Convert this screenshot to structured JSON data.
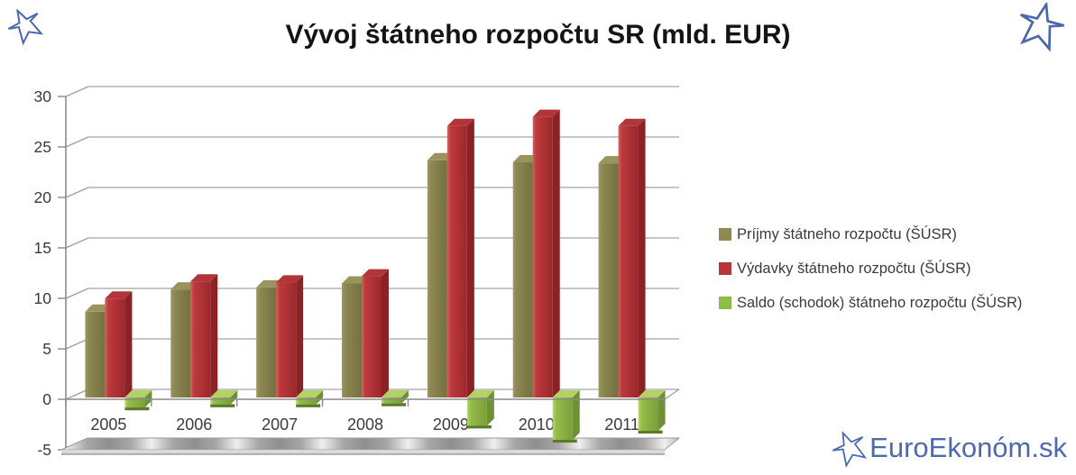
{
  "page": {
    "background": "#ffffff"
  },
  "decorations": {
    "corner_star_color": "#4a67ae",
    "watermark": {
      "text": "EuroEkonóm.sk",
      "color": "#4d6ab0"
    }
  },
  "chart_data": {
    "type": "bar",
    "style": "3d-clustered-column",
    "title": "Vývoj štátneho rozpočtu SR (mld. EUR)",
    "categories": [
      "2005",
      "2006",
      "2007",
      "2008",
      "2009",
      "2010",
      "2011"
    ],
    "series": [
      {
        "name": "Príjmy štátneho rozpočtu (ŠÚSR)",
        "color": "#8F8A55",
        "values": [
          8.5,
          10.7,
          10.9,
          11.3,
          23.5,
          23.3,
          23.2
        ]
      },
      {
        "name": "Výdavky štátneho rozpočtu (ŠÚSR)",
        "color": "#B93438",
        "values": [
          9.8,
          11.5,
          11.4,
          12.0,
          26.9,
          27.8,
          26.9
        ]
      },
      {
        "name": "Saldo (schodok) štátneho rozpočtu (ŠÚSR)",
        "color": "#8CBE44",
        "values": [
          -1.0,
          -0.7,
          -0.7,
          -0.6,
          -2.8,
          -4.2,
          -3.3
        ]
      }
    ],
    "y_ticks": [
      30,
      25,
      20,
      15,
      10,
      5,
      0,
      -5
    ],
    "ylim": [
      -5,
      30
    ],
    "xlabel": "",
    "ylabel": "",
    "grid": true,
    "legend_position": "right"
  }
}
